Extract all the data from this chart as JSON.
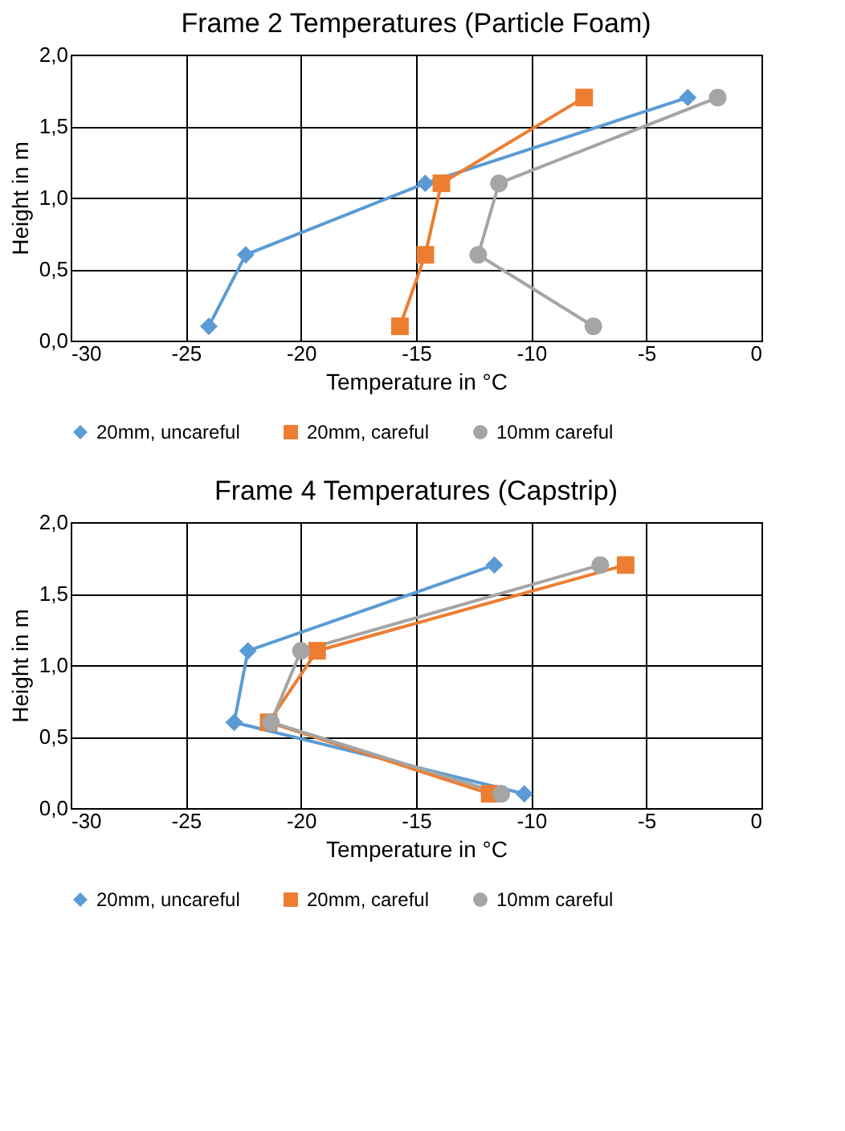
{
  "chart_data": [
    {
      "type": "line",
      "title": "Frame 2 Temperatures (Particle Foam)",
      "xlabel": "Temperature in °C",
      "ylabel": "Height in m",
      "xlim": [
        -30,
        0
      ],
      "xticks": [
        -30,
        -25,
        -20,
        -15,
        -10,
        -5,
        0
      ],
      "ylim": [
        0,
        2
      ],
      "yticks": [
        {
          "value": 0,
          "label": "0,0"
        },
        {
          "value": 0.5,
          "label": "0,5"
        },
        {
          "value": 1,
          "label": "1,0"
        },
        {
          "value": 1.5,
          "label": "1,5"
        },
        {
          "value": 2,
          "label": "2,0"
        }
      ],
      "grid": true,
      "legend": "bottom",
      "series": [
        {
          "name": "20mm, uncareful",
          "color": "#5b9bd5",
          "marker": "diamond",
          "x": [
            -3.2,
            -14.6,
            -22.4,
            -24.0
          ],
          "values": [
            1.7,
            1.1,
            0.6,
            0.1
          ]
        },
        {
          "name": "20mm, careful",
          "color": "#ed7d31",
          "marker": "square",
          "x": [
            -7.7,
            -13.9,
            -14.6,
            -15.7
          ],
          "values": [
            1.7,
            1.1,
            0.6,
            0.1
          ]
        },
        {
          "name": "10mm careful",
          "color": "#a5a5a5",
          "marker": "circle",
          "x": [
            -1.9,
            -11.4,
            -12.3,
            -7.3
          ],
          "values": [
            1.7,
            1.1,
            0.6,
            0.1
          ]
        }
      ]
    },
    {
      "type": "line",
      "title": "Frame 4 Temperatures (Capstrip)",
      "xlabel": "Temperature in °C",
      "ylabel": "Height in m",
      "xlim": [
        -30,
        0
      ],
      "xticks": [
        -30,
        -25,
        -20,
        -15,
        -10,
        -5,
        0
      ],
      "ylim": [
        0,
        2
      ],
      "yticks": [
        {
          "value": 0,
          "label": "0,0"
        },
        {
          "value": 0.5,
          "label": "0,5"
        },
        {
          "value": 1,
          "label": "1,0"
        },
        {
          "value": 1.5,
          "label": "1,5"
        },
        {
          "value": 2,
          "label": "2,0"
        }
      ],
      "grid": true,
      "legend": "bottom",
      "series": [
        {
          "name": "20mm, uncareful",
          "color": "#5b9bd5",
          "marker": "diamond",
          "x": [
            -11.6,
            -22.3,
            -22.9,
            -10.3
          ],
          "values": [
            1.7,
            1.1,
            0.6,
            0.1
          ]
        },
        {
          "name": "20mm, careful",
          "color": "#ed7d31",
          "marker": "square",
          "x": [
            -5.9,
            -19.3,
            -21.4,
            -11.8
          ],
          "values": [
            1.7,
            1.1,
            0.6,
            0.1
          ]
        },
        {
          "name": "10mm careful",
          "color": "#a5a5a5",
          "marker": "circle",
          "x": [
            -7.0,
            -20.0,
            -21.3,
            -11.3
          ],
          "values": [
            1.7,
            1.1,
            0.6,
            0.1
          ]
        }
      ]
    }
  ]
}
